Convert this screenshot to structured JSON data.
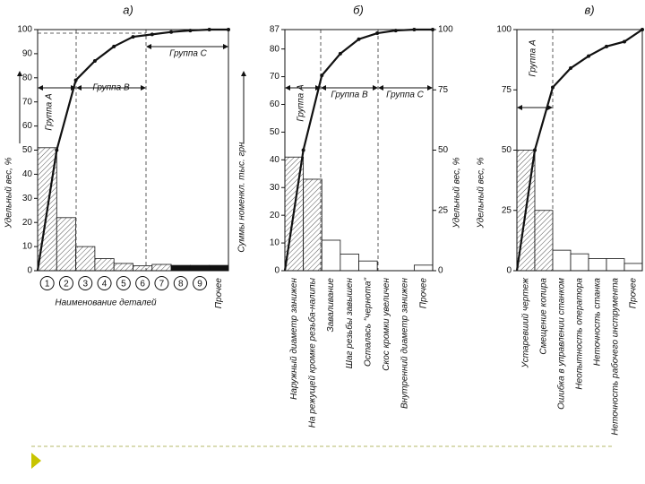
{
  "chart_data": [
    {
      "type": "pareto",
      "title": "а)",
      "categories": [
        "1",
        "2",
        "3",
        "4",
        "5",
        "6",
        "7",
        "8",
        "9",
        "Прочее"
      ],
      "values": [
        51,
        22,
        10,
        5,
        3,
        2,
        2.6,
        2.2,
        2.2,
        2.2
      ],
      "bar_colors": [
        "hatch",
        "hatch",
        "hatch",
        "hatch",
        "hatch",
        "hatch",
        "hatch",
        "#111111",
        "#111111",
        "#111111"
      ],
      "cumulative": [
        50,
        79,
        87,
        93,
        97,
        98,
        99,
        99.6,
        100,
        100
      ],
      "ylim": [
        0,
        100
      ],
      "yticks": [
        0,
        10,
        20,
        30,
        40,
        50,
        60,
        70,
        80,
        90,
        100
      ],
      "ylabel": "Удельный вес, %",
      "y2label": "Суммы номенкл. тыс. грн",
      "xlabel": "Наименование деталей",
      "annotations": [
        "Группа А",
        "Группа В",
        "Группа С"
      ]
    },
    {
      "type": "pareto",
      "title": "б)",
      "categories": [
        "Наружный диаметр занижен",
        "На режущей кромке резьба-налипы",
        "Заваливание",
        "Шаг резьбы завышен",
        "Осталась \"чернота\"",
        "Скос кромки увеличен",
        "Внутренний диаметр занижен",
        "Прочее"
      ],
      "values": [
        41,
        33,
        11,
        6,
        3.5,
        0,
        0,
        2
      ],
      "bar_colors": [
        "hatch",
        "hatch",
        "#ffffff",
        "#ffffff",
        "#ffffff",
        "#ffffff",
        "#ffffff",
        "#ffffff"
      ],
      "cumulative": [
        50,
        81,
        90,
        96,
        98.5,
        99.6,
        100,
        100
      ],
      "cumulative_axis": "y2",
      "ylim": [
        0,
        87
      ],
      "yticks": [
        0,
        10,
        20,
        30,
        40,
        50,
        60,
        70,
        80,
        87
      ],
      "y2lim": [
        0,
        100
      ],
      "y2ticks": [
        0,
        25,
        50,
        75,
        100
      ],
      "y2label": "Удельный вес, %",
      "annotations": [
        "Группа А",
        "Группа В",
        "Группа С"
      ]
    },
    {
      "type": "pareto",
      "title": "в)",
      "categories": [
        "Устаревший чертеж",
        "Смещение копира",
        "Ошибка в управлении станком",
        "Неопытность оператора",
        "Неточность станка",
        "Неточность рабочего инструмента",
        "Прочее"
      ],
      "values": [
        50,
        25,
        8.5,
        7,
        5,
        5,
        3
      ],
      "bar_colors": [
        "hatch",
        "hatch",
        "#ffffff",
        "#ffffff",
        "#ffffff",
        "#ffffff",
        "#ffffff"
      ],
      "cumulative": [
        50,
        76,
        84,
        89,
        93,
        95,
        100
      ],
      "ylim": [
        0,
        100
      ],
      "yticks": [
        0,
        25,
        50,
        75,
        100
      ],
      "ylabel": "Удельный вес, %",
      "annotations": [
        "Группа А"
      ]
    }
  ]
}
